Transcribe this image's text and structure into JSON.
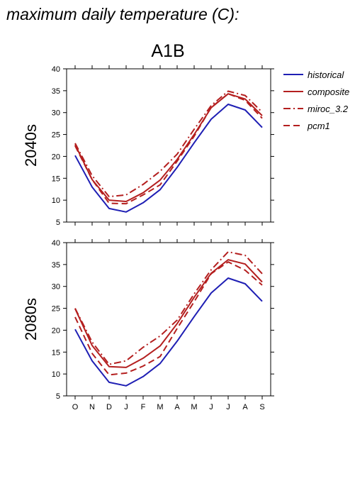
{
  "page_title": "maximum daily temperature (C):",
  "chart_data": {
    "type": "line",
    "title": "A1B",
    "categories": [
      "O",
      "N",
      "D",
      "J",
      "F",
      "M",
      "A",
      "M",
      "J",
      "J",
      "A",
      "S"
    ],
    "ylim": [
      5,
      40
    ],
    "yticks": [
      5,
      10,
      15,
      20,
      25,
      30,
      35,
      40
    ],
    "grid": false,
    "legend_position": "top-right, outside plot",
    "series_styles": [
      {
        "name": "historical",
        "color": "#1f1fb4",
        "dash": "solid"
      },
      {
        "name": "composite",
        "color": "#b41f1f",
        "dash": "solid"
      },
      {
        "name": "miroc_3.2",
        "color": "#b41f1f",
        "dash": "dashdot"
      },
      {
        "name": "pcm1",
        "color": "#b41f1f",
        "dash": "dashed"
      }
    ],
    "panels": [
      {
        "label": "2040s",
        "series": [
          {
            "name": "historical",
            "values": [
              20.2,
              13.0,
              8.1,
              7.3,
              9.4,
              12.4,
              17.5,
              23.1,
              28.5,
              31.9,
              30.6,
              26.6
            ]
          },
          {
            "name": "composite",
            "values": [
              22.7,
              14.7,
              10.0,
              9.7,
              11.7,
              14.6,
              19.3,
              25.0,
              31.1,
              34.3,
              33.1,
              29.3
            ]
          },
          {
            "name": "miroc_3.2",
            "values": [
              23.0,
              15.6,
              10.8,
              11.2,
              13.6,
              16.6,
              20.5,
              26.2,
              31.6,
              34.9,
              33.9,
              30.1
            ]
          },
          {
            "name": "pcm1",
            "values": [
              22.4,
              14.7,
              9.3,
              9.2,
              11.2,
              13.5,
              18.9,
              24.6,
              31.2,
              34.3,
              32.8,
              28.7
            ]
          }
        ]
      },
      {
        "label": "2080s",
        "series": [
          {
            "name": "historical",
            "values": [
              20.2,
              13.0,
              8.1,
              7.3,
              9.4,
              12.4,
              17.5,
              23.1,
              28.5,
              31.9,
              30.6,
              26.6
            ]
          },
          {
            "name": "composite",
            "values": [
              24.9,
              16.5,
              11.7,
              11.5,
              13.6,
              16.4,
              21.5,
              27.5,
              33.0,
              36.1,
              35.1,
              31.0
            ]
          },
          {
            "name": "miroc_3.2",
            "values": [
              25.0,
              17.3,
              12.2,
              13.0,
              16.1,
              18.7,
              22.3,
              28.3,
              33.8,
              37.9,
              37.1,
              32.9
            ]
          },
          {
            "name": "pcm1",
            "values": [
              23.0,
              14.7,
              9.8,
              10.2,
              11.8,
              14.0,
              20.4,
              26.5,
              32.9,
              35.6,
              33.7,
              30.3
            ]
          }
        ]
      }
    ]
  }
}
